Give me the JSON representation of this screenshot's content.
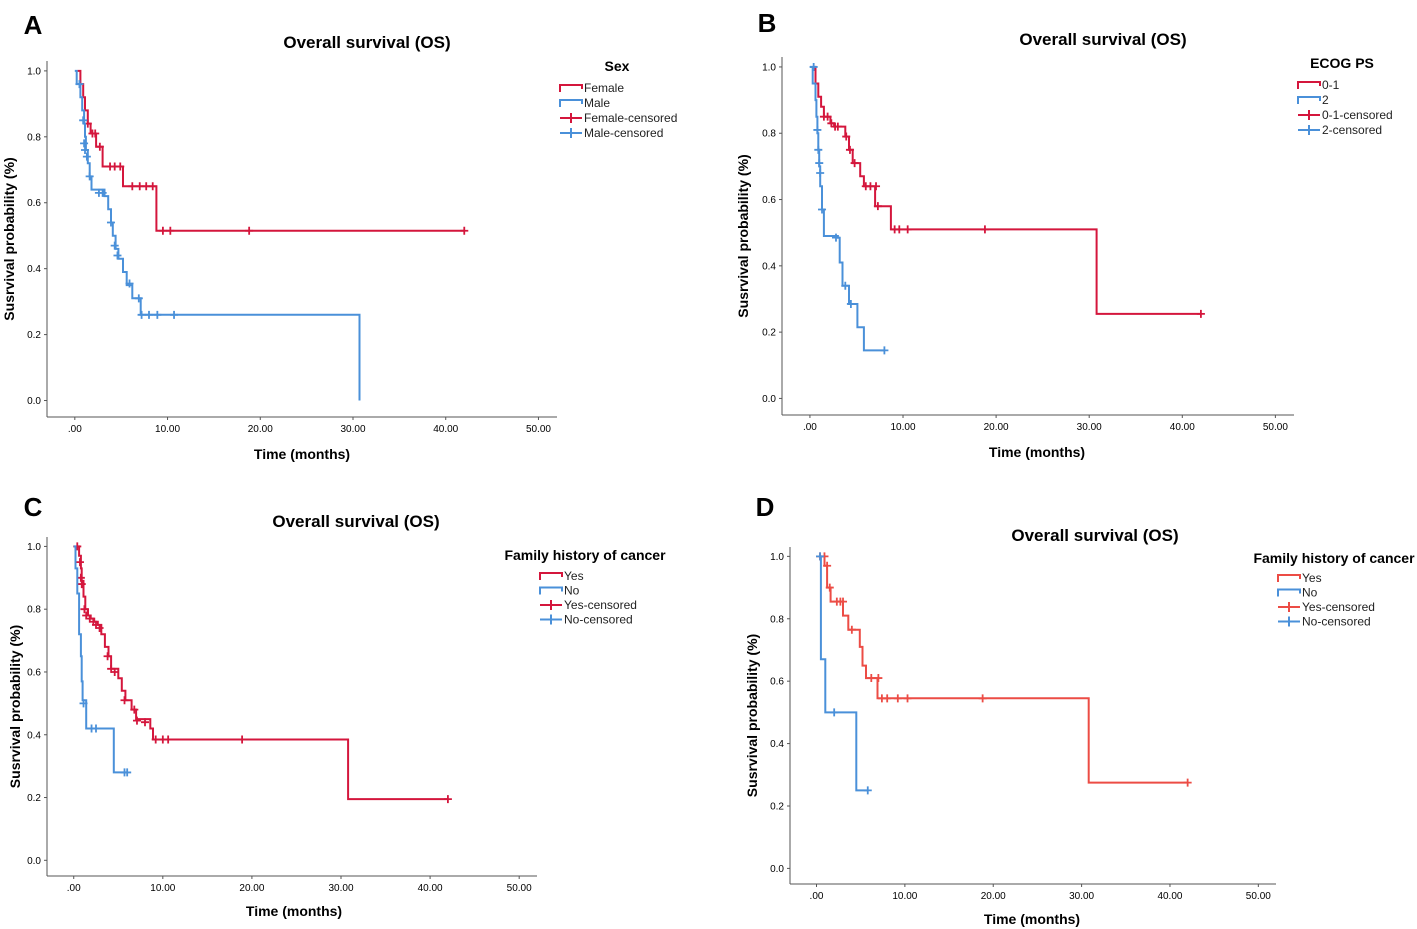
{
  "colors": {
    "red": "#d4163c",
    "blue": "#4a90d9",
    "red_light": "#ec4c45",
    "axis": "#555555"
  },
  "chart_data": [
    {
      "panel": "A",
      "type": "line",
      "title": "Overall survival (OS)",
      "xlabel": "Time (months)",
      "ylabel": "Susrvival probability (%)",
      "xlim": [
        -3,
        52
      ],
      "ylim": [
        -0.05,
        1.03
      ],
      "xticks": [
        ".00",
        "10.00",
        "20.00",
        "30.00",
        "40.00",
        "50.00"
      ],
      "xtick_values": [
        0,
        10,
        20,
        30,
        40,
        50
      ],
      "yticks": [
        "0.0",
        "0.2",
        "0.4",
        "0.6",
        "0.8",
        "1.0"
      ],
      "ytick_values": [
        0,
        0.2,
        0.4,
        0.6,
        0.8,
        1.0
      ],
      "legend_title": "Sex",
      "legend": [
        "Female",
        "Male",
        "Female-censored",
        "Male-censored"
      ],
      "series": [
        {
          "name": "Female",
          "color": "red",
          "steps": [
            [
              0.3,
              1.0
            ],
            [
              0.6,
              0.96
            ],
            [
              0.9,
              0.92
            ],
            [
              1.1,
              0.88
            ],
            [
              1.4,
              0.84
            ],
            [
              1.7,
              0.81
            ],
            [
              2.3,
              0.77
            ],
            [
              3.0,
              0.71
            ],
            [
              5.2,
              0.65
            ],
            [
              8.8,
              0.515
            ],
            [
              42,
              0.515
            ]
          ],
          "censored": [
            [
              1.4,
              0.84
            ],
            [
              1.9,
              0.81
            ],
            [
              2.2,
              0.81
            ],
            [
              2.7,
              0.77
            ],
            [
              3.8,
              0.71
            ],
            [
              4.3,
              0.71
            ],
            [
              4.9,
              0.71
            ],
            [
              6.2,
              0.65
            ],
            [
              7.0,
              0.65
            ],
            [
              7.7,
              0.65
            ],
            [
              8.4,
              0.65
            ],
            [
              9.5,
              0.515
            ],
            [
              10.3,
              0.515
            ],
            [
              18.8,
              0.515
            ],
            [
              42,
              0.515
            ]
          ]
        },
        {
          "name": "Male",
          "color": "blue",
          "steps": [
            [
              0,
              1.0
            ],
            [
              0.2,
              0.96
            ],
            [
              0.6,
              0.92
            ],
            [
              0.8,
              0.88
            ],
            [
              1.0,
              0.84
            ],
            [
              1.1,
              0.8
            ],
            [
              1.2,
              0.76
            ],
            [
              1.4,
              0.72
            ],
            [
              1.6,
              0.68
            ],
            [
              1.8,
              0.64
            ],
            [
              3.2,
              0.62
            ],
            [
              3.6,
              0.58
            ],
            [
              3.9,
              0.54
            ],
            [
              4.1,
              0.5
            ],
            [
              4.4,
              0.46
            ],
            [
              4.7,
              0.43
            ],
            [
              5.2,
              0.39
            ],
            [
              5.6,
              0.35
            ],
            [
              6.2,
              0.31
            ],
            [
              7.1,
              0.26
            ],
            [
              30.7,
              0.0
            ]
          ],
          "censored": [
            [
              0.5,
              0.96
            ],
            [
              0.9,
              0.85
            ],
            [
              1.0,
              0.78
            ],
            [
              1.1,
              0.76
            ],
            [
              1.3,
              0.74
            ],
            [
              1.6,
              0.68
            ],
            [
              2.6,
              0.63
            ],
            [
              3.0,
              0.63
            ],
            [
              3.9,
              0.54
            ],
            [
              4.3,
              0.47
            ],
            [
              4.6,
              0.44
            ],
            [
              5.9,
              0.355
            ],
            [
              6.9,
              0.31
            ],
            [
              7.2,
              0.26
            ],
            [
              8.0,
              0.26
            ],
            [
              8.9,
              0.26
            ],
            [
              10.7,
              0.26
            ]
          ]
        }
      ]
    },
    {
      "panel": "B",
      "type": "line",
      "title": "Overall survival (OS)",
      "xlabel": "Time (months)",
      "ylabel": "Susrvival probability (%)",
      "xlim": [
        -3,
        52
      ],
      "ylim": [
        -0.05,
        1.03
      ],
      "xticks": [
        ".00",
        "10.00",
        "20.00",
        "30.00",
        "40.00",
        "50.00"
      ],
      "xtick_values": [
        0,
        10,
        20,
        30,
        40,
        50
      ],
      "yticks": [
        "0.0",
        "0.2",
        "0.4",
        "0.6",
        "0.8",
        "1.0"
      ],
      "ytick_values": [
        0,
        0.2,
        0.4,
        0.6,
        0.8,
        1.0
      ],
      "legend_title": "ECOG PS",
      "legend": [
        "0-1",
        "2",
        "0-1-censored",
        "2-censored"
      ],
      "series": [
        {
          "name": "0-1",
          "color": "red",
          "steps": [
            [
              0.3,
              1.0
            ],
            [
              0.6,
              0.95
            ],
            [
              0.9,
              0.91
            ],
            [
              1.2,
              0.88
            ],
            [
              1.5,
              0.85
            ],
            [
              2.2,
              0.83
            ],
            [
              2.6,
              0.82
            ],
            [
              3.8,
              0.79
            ],
            [
              4.2,
              0.75
            ],
            [
              4.6,
              0.71
            ],
            [
              5.4,
              0.67
            ],
            [
              5.8,
              0.64
            ],
            [
              7.0,
              0.58
            ],
            [
              8.7,
              0.51
            ],
            [
              30.8,
              0.255
            ],
            [
              42,
              0.255
            ]
          ],
          "censored": [
            [
              1.5,
              0.85
            ],
            [
              1.9,
              0.85
            ],
            [
              2.3,
              0.83
            ],
            [
              2.7,
              0.82
            ],
            [
              3.0,
              0.82
            ],
            [
              3.9,
              0.79
            ],
            [
              4.3,
              0.75
            ],
            [
              4.8,
              0.71
            ],
            [
              6.0,
              0.64
            ],
            [
              6.5,
              0.64
            ],
            [
              7.1,
              0.64
            ],
            [
              7.3,
              0.58
            ],
            [
              9.1,
              0.51
            ],
            [
              9.6,
              0.51
            ],
            [
              10.5,
              0.51
            ],
            [
              18.8,
              0.51
            ],
            [
              42,
              0.255
            ]
          ]
        },
        {
          "name": "2",
          "color": "blue",
          "steps": [
            [
              0,
              1.0
            ],
            [
              0.3,
              0.95
            ],
            [
              0.6,
              0.9
            ],
            [
              0.7,
              0.85
            ],
            [
              0.8,
              0.8
            ],
            [
              0.9,
              0.75
            ],
            [
              1.0,
              0.7
            ],
            [
              1.1,
              0.64
            ],
            [
              1.3,
              0.57
            ],
            [
              1.5,
              0.49
            ],
            [
              3.0,
              0.485
            ],
            [
              3.2,
              0.41
            ],
            [
              3.5,
              0.34
            ],
            [
              4.2,
              0.285
            ],
            [
              5.1,
              0.215
            ],
            [
              5.8,
              0.145
            ],
            [
              8.0,
              0.145
            ]
          ],
          "censored": [
            [
              0.4,
              1.0
            ],
            [
              0.8,
              0.81
            ],
            [
              0.9,
              0.75
            ],
            [
              1.0,
              0.71
            ],
            [
              1.1,
              0.68
            ],
            [
              1.3,
              0.57
            ],
            [
              2.8,
              0.485
            ],
            [
              3.8,
              0.34
            ],
            [
              4.4,
              0.285
            ],
            [
              8.0,
              0.145
            ]
          ]
        }
      ]
    },
    {
      "panel": "C",
      "type": "line",
      "title": "Overall survival (OS)",
      "xlabel": "Time (months)",
      "ylabel": "Susrvival probability (%)",
      "xlim": [
        -3,
        52
      ],
      "ylim": [
        -0.05,
        1.03
      ],
      "xticks": [
        ".00",
        "10.00",
        "20.00",
        "30.00",
        "40.00",
        "50.00"
      ],
      "xtick_values": [
        0,
        10,
        20,
        30,
        40,
        50
      ],
      "yticks": [
        "0.0",
        "0.2",
        "0.4",
        "0.6",
        "0.8",
        "1.0"
      ],
      "ytick_values": [
        0,
        0.2,
        0.4,
        0.6,
        0.8,
        1.0
      ],
      "legend_title": "Family history of cancer",
      "legend": [
        "Yes",
        "No",
        "Yes-censored",
        "No-censored"
      ],
      "series": [
        {
          "name": "Yes",
          "color": "red",
          "steps": [
            [
              0.3,
              1.0
            ],
            [
              0.6,
              0.97
            ],
            [
              0.8,
              0.93
            ],
            [
              0.9,
              0.89
            ],
            [
              1.1,
              0.84
            ],
            [
              1.3,
              0.8
            ],
            [
              1.6,
              0.78
            ],
            [
              1.9,
              0.77
            ],
            [
              2.3,
              0.76
            ],
            [
              2.7,
              0.75
            ],
            [
              3.1,
              0.72
            ],
            [
              3.5,
              0.68
            ],
            [
              3.9,
              0.65
            ],
            [
              4.2,
              0.61
            ],
            [
              5.0,
              0.58
            ],
            [
              5.4,
              0.54
            ],
            [
              5.8,
              0.51
            ],
            [
              6.5,
              0.48
            ],
            [
              7.0,
              0.45
            ],
            [
              8.6,
              0.42
            ],
            [
              8.9,
              0.385
            ],
            [
              30.8,
              0.195
            ],
            [
              42,
              0.195
            ]
          ],
          "censored": [
            [
              0.4,
              1.0
            ],
            [
              0.7,
              0.95
            ],
            [
              0.8,
              0.9
            ],
            [
              0.9,
              0.88
            ],
            [
              1.2,
              0.8
            ],
            [
              1.4,
              0.78
            ],
            [
              1.8,
              0.77
            ],
            [
              2.2,
              0.76
            ],
            [
              2.5,
              0.75
            ],
            [
              2.9,
              0.74
            ],
            [
              3.8,
              0.65
            ],
            [
              4.2,
              0.61
            ],
            [
              4.6,
              0.6
            ],
            [
              5.7,
              0.51
            ],
            [
              6.8,
              0.48
            ],
            [
              7.1,
              0.445
            ],
            [
              8.0,
              0.44
            ],
            [
              9.2,
              0.385
            ],
            [
              10.0,
              0.385
            ],
            [
              10.6,
              0.385
            ],
            [
              18.9,
              0.385
            ],
            [
              42,
              0.195
            ]
          ]
        },
        {
          "name": "No",
          "color": "blue",
          "steps": [
            [
              0,
              1.0
            ],
            [
              0.2,
              0.93
            ],
            [
              0.4,
              0.85
            ],
            [
              0.6,
              0.72
            ],
            [
              0.8,
              0.65
            ],
            [
              0.9,
              0.57
            ],
            [
              1.0,
              0.51
            ],
            [
              1.4,
              0.42
            ],
            [
              4.5,
              0.28
            ],
            [
              6.0,
              0.28
            ]
          ],
          "censored": [
            [
              1.1,
              0.5
            ],
            [
              2.0,
              0.42
            ],
            [
              2.5,
              0.42
            ],
            [
              5.7,
              0.28
            ],
            [
              6.0,
              0.28
            ]
          ]
        }
      ]
    },
    {
      "panel": "D",
      "type": "line",
      "title": "Overall survival (OS)",
      "xlabel": "Time (months)",
      "ylabel": "Susrvival probability (%)",
      "xlim": [
        -3,
        52
      ],
      "ylim": [
        -0.05,
        1.03
      ],
      "xticks": [
        ".00",
        "10.00",
        "20.00",
        "30.00",
        "40.00",
        "50.00"
      ],
      "xtick_values": [
        0,
        10,
        20,
        30,
        40,
        50
      ],
      "yticks": [
        "0.0",
        "0.2",
        "0.4",
        "0.6",
        "0.8",
        "1.0"
      ],
      "ytick_values": [
        0,
        0.2,
        0.4,
        0.6,
        0.8,
        1.0
      ],
      "legend_title": "Family history of cancer",
      "legend": [
        "Yes",
        "No",
        "Yes-censored",
        "No-censored"
      ],
      "series": [
        {
          "name": "Yes",
          "color": "red_light",
          "steps": [
            [
              0.3,
              1.0
            ],
            [
              0.9,
              0.97
            ],
            [
              1.2,
              0.9
            ],
            [
              1.6,
              0.855
            ],
            [
              3.0,
              0.81
            ],
            [
              3.6,
              0.765
            ],
            [
              4.9,
              0.71
            ],
            [
              5.2,
              0.65
            ],
            [
              5.6,
              0.61
            ],
            [
              6.9,
              0.545
            ],
            [
              30.8,
              0.275
            ],
            [
              42,
              0.275
            ]
          ],
          "censored": [
            [
              0.4,
              1.0
            ],
            [
              0.9,
              1.0
            ],
            [
              1.2,
              0.97
            ],
            [
              1.5,
              0.9
            ],
            [
              2.3,
              0.855
            ],
            [
              2.7,
              0.855
            ],
            [
              3.0,
              0.855
            ],
            [
              4.0,
              0.765
            ],
            [
              6.2,
              0.61
            ],
            [
              7.0,
              0.61
            ],
            [
              7.4,
              0.545
            ],
            [
              8.0,
              0.545
            ],
            [
              9.2,
              0.545
            ],
            [
              10.3,
              0.545
            ],
            [
              18.8,
              0.545
            ],
            [
              42,
              0.275
            ]
          ]
        },
        {
          "name": "No",
          "color": "blue",
          "steps": [
            [
              0.3,
              1.0
            ],
            [
              0.5,
              0.67
            ],
            [
              1.0,
              0.5
            ],
            [
              4.5,
              0.25
            ],
            [
              5.8,
              0.25
            ]
          ],
          "censored": [
            [
              0.4,
              1.0
            ],
            [
              2.0,
              0.5
            ],
            [
              5.8,
              0.25
            ]
          ]
        }
      ]
    }
  ]
}
